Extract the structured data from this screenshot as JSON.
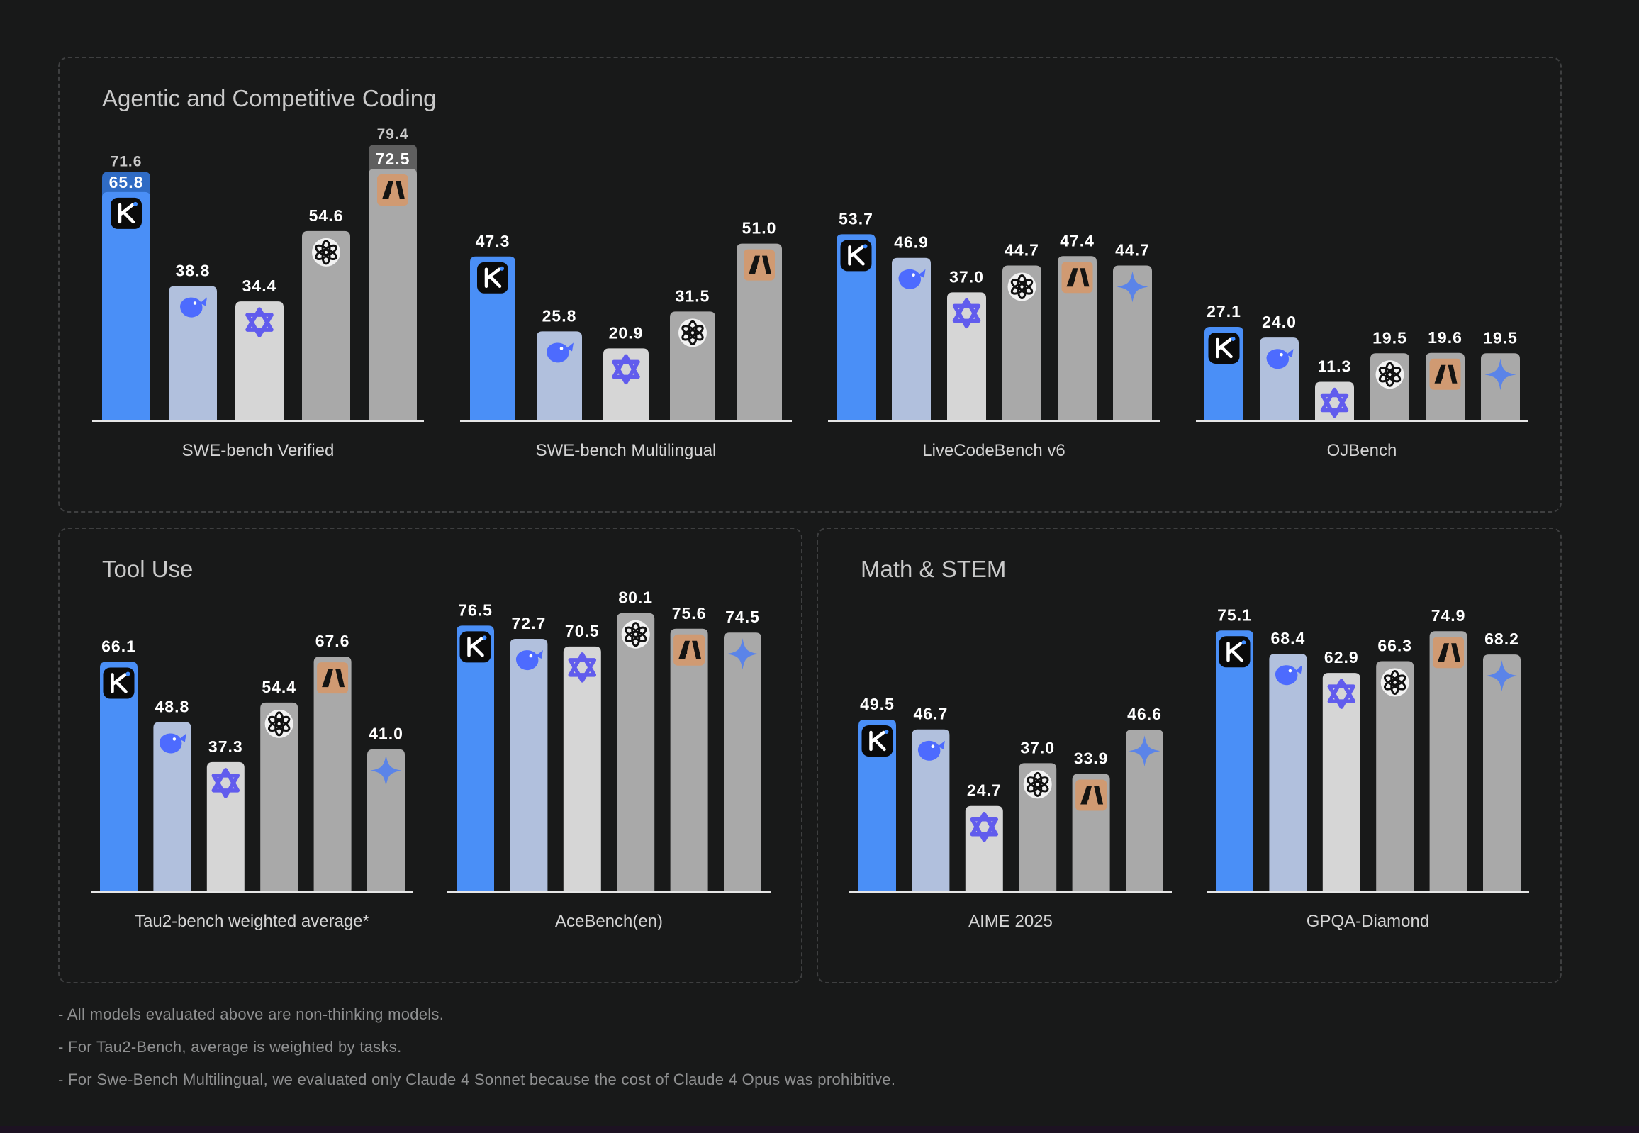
{
  "panels": {
    "coding": "Agentic and Competitive Coding",
    "tool": "Tool Use",
    "math": "Math & STEM"
  },
  "colors": {
    "kimi": "#4a8ff7",
    "deepseek": "#b1c0dd",
    "qwen": "#d6d6d6",
    "openai": "#a9a9a9",
    "claude": "#a9a9a9",
    "gemini": "#a9a9a9",
    "kimi_upper": "#2f6bc4",
    "claude_upper": "#5f5f5f"
  },
  "chart_data": [
    {
      "type": "bar",
      "title": "SWE-bench Verified",
      "panel": "coding",
      "categories": [
        "Kimi",
        "DeepSeek",
        "Qwen",
        "OpenAI",
        "Claude"
      ],
      "icons": [
        "kimi-icon",
        "deepseek-icon",
        "qwen-icon",
        "openai-icon",
        "anthropic-icon"
      ],
      "values": [
        65.8,
        38.8,
        34.4,
        54.6,
        72.5
      ],
      "upper_values": [
        71.6,
        null,
        null,
        null,
        79.4
      ],
      "ylim": [
        0,
        85
      ]
    },
    {
      "type": "bar",
      "title": "SWE-bench Multilingual",
      "panel": "coding",
      "categories": [
        "Kimi",
        "DeepSeek",
        "Qwen",
        "OpenAI",
        "Claude"
      ],
      "icons": [
        "kimi-icon",
        "deepseek-icon",
        "qwen-icon",
        "openai-icon",
        "anthropic-icon"
      ],
      "values": [
        47.3,
        25.8,
        20.9,
        31.5,
        51.0
      ],
      "upper_values": [
        null,
        null,
        null,
        null,
        null
      ],
      "ylim": [
        0,
        85
      ]
    },
    {
      "type": "bar",
      "title": "LiveCodeBench v6",
      "panel": "coding",
      "categories": [
        "Kimi",
        "DeepSeek",
        "Qwen",
        "OpenAI",
        "Claude",
        "Gemini"
      ],
      "icons": [
        "kimi-icon",
        "deepseek-icon",
        "qwen-icon",
        "openai-icon",
        "anthropic-icon",
        "gemini-icon"
      ],
      "values": [
        53.7,
        46.9,
        37.0,
        44.7,
        47.4,
        44.7
      ],
      "upper_values": [
        null,
        null,
        null,
        null,
        null,
        null
      ],
      "ylim": [
        0,
        85
      ]
    },
    {
      "type": "bar",
      "title": "OJBench",
      "panel": "coding",
      "categories": [
        "Kimi",
        "DeepSeek",
        "Qwen",
        "OpenAI",
        "Claude",
        "Gemini"
      ],
      "icons": [
        "kimi-icon",
        "deepseek-icon",
        "qwen-icon",
        "openai-icon",
        "anthropic-icon",
        "gemini-icon"
      ],
      "values": [
        27.1,
        24.0,
        11.3,
        19.5,
        19.6,
        19.5
      ],
      "upper_values": [
        null,
        null,
        null,
        null,
        null,
        null
      ],
      "ylim": [
        0,
        85
      ]
    },
    {
      "type": "bar",
      "title": "Tau2-bench weighted average*",
      "panel": "tool",
      "categories": [
        "Kimi",
        "DeepSeek",
        "Qwen",
        "OpenAI",
        "Claude",
        "Gemini"
      ],
      "icons": [
        "kimi-icon",
        "deepseek-icon",
        "qwen-icon",
        "openai-icon",
        "anthropic-icon",
        "gemini-icon"
      ],
      "values": [
        66.1,
        48.8,
        37.3,
        54.4,
        67.6,
        41.0
      ],
      "upper_values": [
        null,
        null,
        null,
        null,
        null,
        null
      ],
      "ylim": [
        0,
        85
      ]
    },
    {
      "type": "bar",
      "title": "AceBench(en)",
      "panel": "tool",
      "categories": [
        "Kimi",
        "DeepSeek",
        "Qwen",
        "OpenAI",
        "Claude",
        "Gemini"
      ],
      "icons": [
        "kimi-icon",
        "deepseek-icon",
        "qwen-icon",
        "openai-icon",
        "anthropic-icon",
        "gemini-icon"
      ],
      "values": [
        76.5,
        72.7,
        70.5,
        80.1,
        75.6,
        74.5
      ],
      "upper_values": [
        null,
        null,
        null,
        null,
        null,
        null
      ],
      "ylim": [
        0,
        85
      ]
    },
    {
      "type": "bar",
      "title": "AIME 2025",
      "panel": "math",
      "categories": [
        "Kimi",
        "DeepSeek",
        "Qwen",
        "OpenAI",
        "Claude",
        "Gemini"
      ],
      "icons": [
        "kimi-icon",
        "deepseek-icon",
        "qwen-icon",
        "openai-icon",
        "anthropic-icon",
        "gemini-icon"
      ],
      "values": [
        49.5,
        46.7,
        24.7,
        37.0,
        33.9,
        46.6
      ],
      "upper_values": [
        null,
        null,
        null,
        null,
        null,
        null
      ],
      "ylim": [
        0,
        85
      ]
    },
    {
      "type": "bar",
      "title": "GPQA-Diamond",
      "panel": "math",
      "categories": [
        "Kimi",
        "DeepSeek",
        "Qwen",
        "OpenAI",
        "Claude",
        "Gemini"
      ],
      "icons": [
        "kimi-icon",
        "deepseek-icon",
        "qwen-icon",
        "openai-icon",
        "anthropic-icon",
        "gemini-icon"
      ],
      "values": [
        75.1,
        68.4,
        62.9,
        66.3,
        74.9,
        68.2
      ],
      "upper_values": [
        null,
        null,
        null,
        null,
        null,
        null
      ],
      "ylim": [
        0,
        85
      ]
    }
  ],
  "footnotes": [
    "- All models evaluated above are non-thinking models.",
    "- For Tau2-Bench, average is weighted by tasks.",
    "- For Swe-Bench Multilingual, we evaluated only Claude 4 Sonnet because the cost of Claude 4 Opus was prohibitive."
  ]
}
